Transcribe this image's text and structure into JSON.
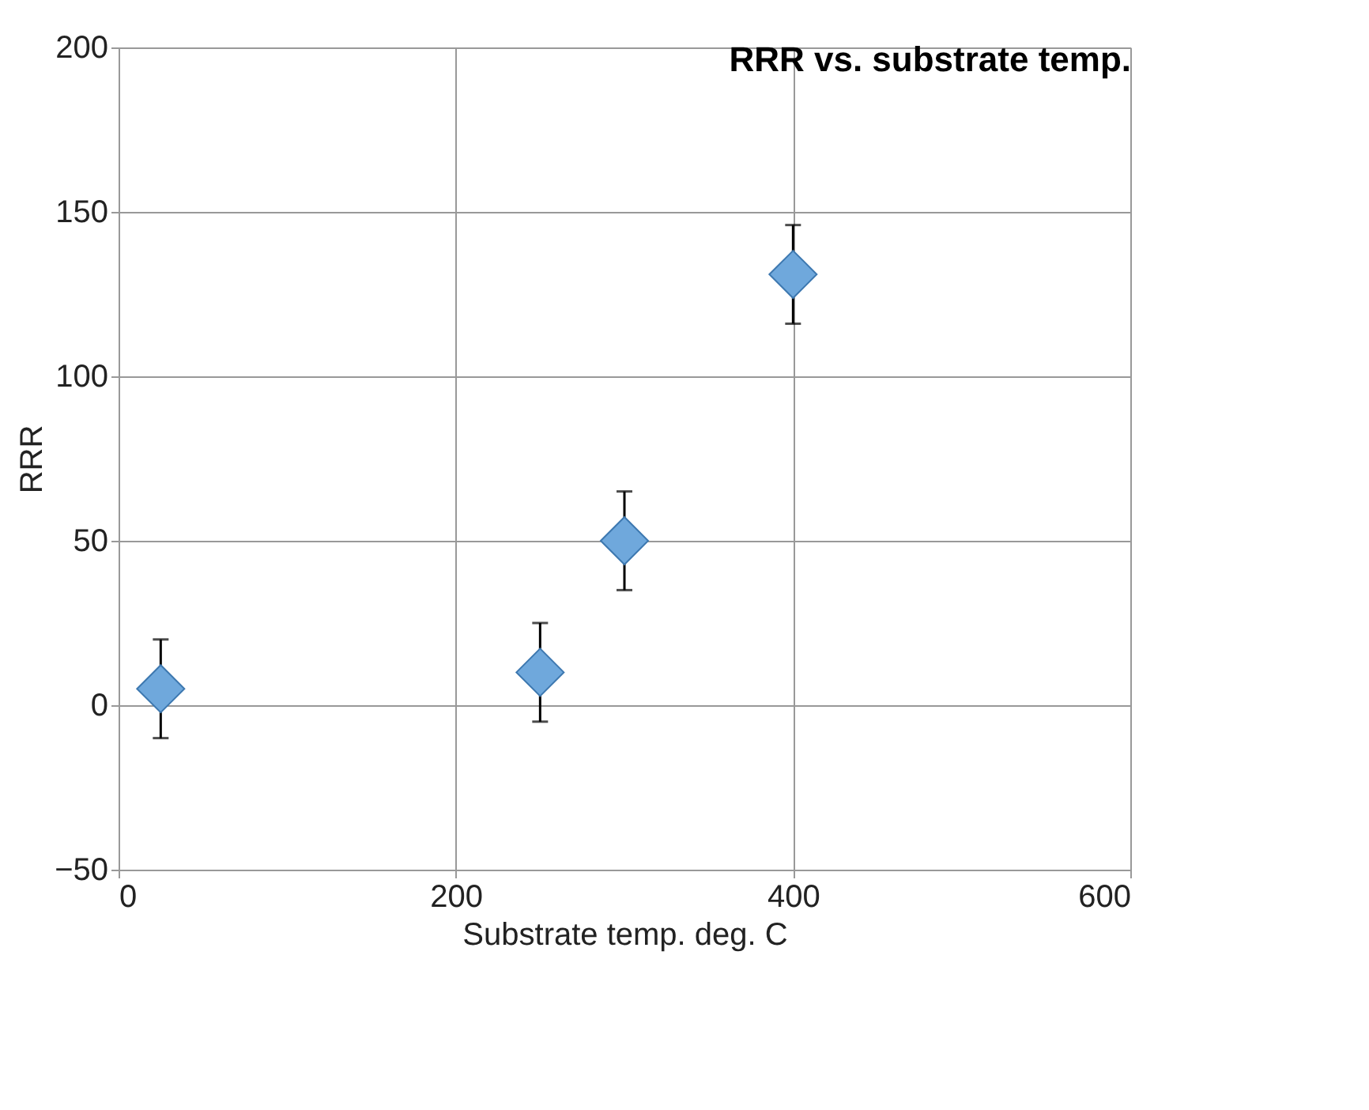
{
  "chart_data": {
    "type": "scatter",
    "title": "RRR vs. substrate temp.",
    "xlabel": "Substrate temp. deg. C",
    "ylabel": "RRR",
    "x": [
      25,
      250,
      300,
      400
    ],
    "series": [
      {
        "color": "#6fa8dc",
        "values": [
          5,
          10,
          50,
          131
        ],
        "errors": [
          15,
          15,
          15,
          15
        ]
      }
    ],
    "xlim": [
      0,
      600
    ],
    "xticks": [
      0,
      200,
      400,
      600
    ],
    "ylim": [
      -50,
      200
    ],
    "yticks": [
      -50,
      0,
      50,
      100,
      150,
      200
    ],
    "grid": true,
    "marker": "diamond"
  }
}
